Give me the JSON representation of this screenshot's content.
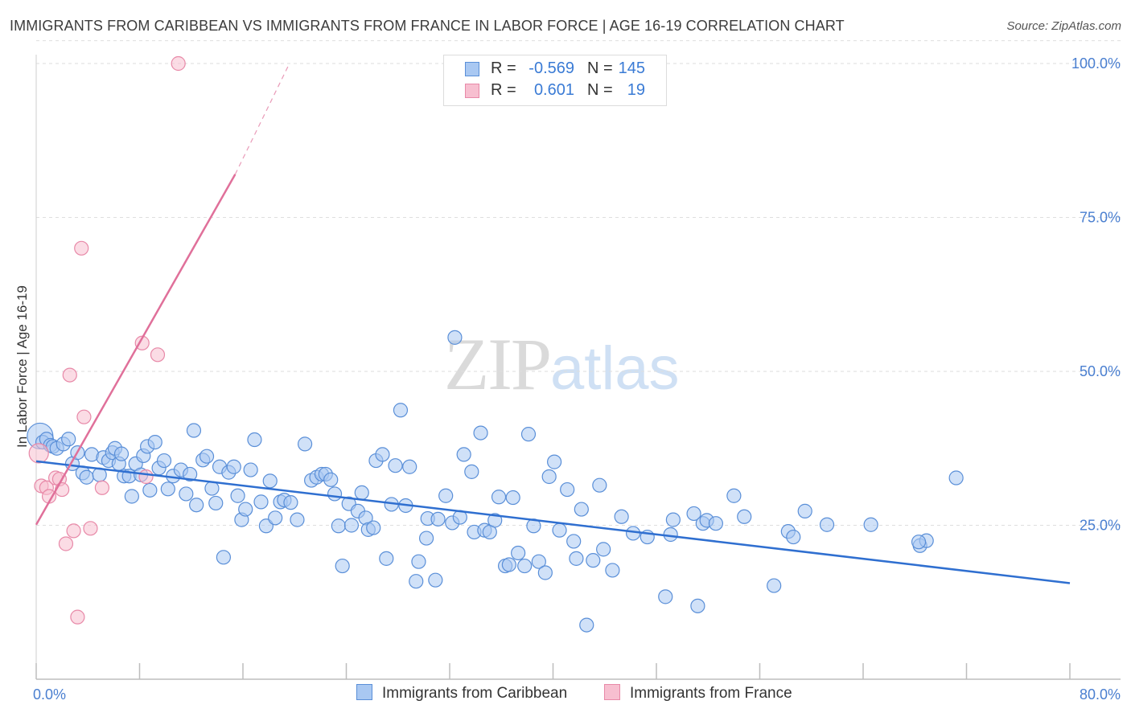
{
  "title": "IMMIGRANTS FROM CARIBBEAN VS IMMIGRANTS FROM FRANCE IN LABOR FORCE | AGE 16-19 CORRELATION CHART",
  "source": "Source: ZipAtlas.com",
  "watermark": {
    "zip": "ZIP",
    "atlas": "atlas"
  },
  "legend": {
    "series1": {
      "r_label": "R =",
      "r_value": "-0.569",
      "n_label": "N =",
      "n_value": "145"
    },
    "series2": {
      "r_label": "R =",
      "r_value": "0.601",
      "n_label": "N =",
      "n_value": "19"
    }
  },
  "colors": {
    "blue_fill": "#a9c8f2",
    "blue_stroke": "#5a8fd8",
    "blue_line": "#2f6fd0",
    "pink_fill": "#f7bfd0",
    "pink_stroke": "#e889a8",
    "pink_line": "#e0709a",
    "axis_text": "#4a7fd0",
    "grid": "#dedede"
  },
  "chart_data": {
    "type": "scatter",
    "title": "IMMIGRANTS FROM CARIBBEAN VS IMMIGRANTS FROM FRANCE IN LABOR FORCE | AGE 16-19 CORRELATION CHART",
    "xlabel": "",
    "ylabel": "In Labor Force | Age 16-19",
    "xlim": [
      0,
      80
    ],
    "ylim": [
      0,
      105
    ],
    "x_tick_labels": [
      "0.0%",
      "80.0%"
    ],
    "y_ticks": [
      25,
      50,
      75,
      100
    ],
    "y_tick_labels": [
      "25.0%",
      "50.0%",
      "75.0%",
      "100.0%"
    ],
    "grid": true,
    "legend_position": "bottom",
    "series": [
      {
        "name": "Immigrants from Caribbean",
        "color": "#a9c8f2",
        "trend": {
          "x": [
            0,
            80
          ],
          "y": [
            35.4,
            15.6
          ],
          "style": "solid"
        },
        "points": [
          [
            0.3,
            39.5
          ],
          [
            0.5,
            38.5
          ],
          [
            0.8,
            39
          ],
          [
            1.1,
            38
          ],
          [
            1.3,
            37.8
          ],
          [
            1.6,
            37.5
          ],
          [
            2.1,
            38.2
          ],
          [
            2.5,
            39
          ],
          [
            2.8,
            35
          ],
          [
            3.2,
            36.8
          ],
          [
            3.6,
            33.5
          ],
          [
            3.9,
            32.8
          ],
          [
            4.3,
            36.5
          ],
          [
            4.9,
            33.2
          ],
          [
            5.2,
            36
          ],
          [
            5.6,
            35.5
          ],
          [
            5.9,
            36.8
          ],
          [
            6.1,
            37.5
          ],
          [
            6.4,
            35
          ],
          [
            6.6,
            36.6
          ],
          [
            6.8,
            33
          ],
          [
            7.2,
            33
          ],
          [
            7.4,
            29.7
          ],
          [
            7.7,
            35
          ],
          [
            8.1,
            33.2
          ],
          [
            8.3,
            36.3
          ],
          [
            8.6,
            37.8
          ],
          [
            8.8,
            30.7
          ],
          [
            9.2,
            38.5
          ],
          [
            9.5,
            34.3
          ],
          [
            9.9,
            35.5
          ],
          [
            10.2,
            30.9
          ],
          [
            10.6,
            33
          ],
          [
            11.2,
            34
          ],
          [
            11.6,
            30.1
          ],
          [
            11.9,
            33.3
          ],
          [
            12.2,
            40.4
          ],
          [
            12.4,
            28.3
          ],
          [
            12.9,
            35.6
          ],
          [
            13.2,
            36.2
          ],
          [
            13.6,
            31
          ],
          [
            13.9,
            28.6
          ],
          [
            14.2,
            34.5
          ],
          [
            14.5,
            19.8
          ],
          [
            14.9,
            33.6
          ],
          [
            15.3,
            34.5
          ],
          [
            15.6,
            29.8
          ],
          [
            15.9,
            25.9
          ],
          [
            16.2,
            27.6
          ],
          [
            16.6,
            34
          ],
          [
            16.9,
            38.9
          ],
          [
            17.4,
            28.8
          ],
          [
            17.8,
            24.9
          ],
          [
            18.1,
            32.2
          ],
          [
            18.5,
            26.2
          ],
          [
            18.9,
            28.8
          ],
          [
            19.2,
            29.1
          ],
          [
            19.7,
            28.7
          ],
          [
            20.2,
            25.9
          ],
          [
            20.8,
            38.2
          ],
          [
            21.3,
            32.3
          ],
          [
            21.7,
            32.8
          ],
          [
            22.1,
            33.3
          ],
          [
            22.4,
            33.3
          ],
          [
            22.8,
            32.4
          ],
          [
            23.1,
            30.1
          ],
          [
            23.4,
            24.9
          ],
          [
            23.7,
            18.4
          ],
          [
            24.2,
            28.5
          ],
          [
            24.4,
            25
          ],
          [
            24.9,
            27.3
          ],
          [
            25.2,
            30.3
          ],
          [
            25.5,
            26.2
          ],
          [
            25.7,
            24.3
          ],
          [
            26.1,
            24.6
          ],
          [
            26.3,
            35.5
          ],
          [
            27.1,
            19.6
          ],
          [
            27.5,
            28.4
          ],
          [
            27.8,
            34.7
          ],
          [
            28.2,
            43.7
          ],
          [
            28.6,
            28.2
          ],
          [
            28.9,
            34.5
          ],
          [
            29.4,
            15.9
          ],
          [
            29.6,
            19.1
          ],
          [
            30.2,
            22.9
          ],
          [
            30.3,
            26.1
          ],
          [
            30.9,
            16.1
          ],
          [
            31.1,
            26
          ],
          [
            31.7,
            29.8
          ],
          [
            32.2,
            25.4
          ],
          [
            32.4,
            55.5
          ],
          [
            32.8,
            26.3
          ],
          [
            33.1,
            36.5
          ],
          [
            33.7,
            33.7
          ],
          [
            33.9,
            23.9
          ],
          [
            34.4,
            40
          ],
          [
            34.7,
            24.2
          ],
          [
            35.1,
            23.9
          ],
          [
            35.5,
            25.8
          ],
          [
            35.8,
            29.6
          ],
          [
            36.3,
            18.4
          ],
          [
            36.6,
            18.6
          ],
          [
            36.9,
            29.5
          ],
          [
            37.3,
            20.5
          ],
          [
            37.8,
            18.4
          ],
          [
            38.1,
            39.8
          ],
          [
            38.5,
            24.9
          ],
          [
            38.9,
            19.1
          ],
          [
            39.4,
            17.3
          ],
          [
            39.7,
            32.9
          ],
          [
            40.1,
            35.3
          ],
          [
            40.5,
            24.2
          ],
          [
            41.1,
            30.8
          ],
          [
            41.6,
            22.4
          ],
          [
            41.8,
            19.6
          ],
          [
            42.2,
            27.6
          ],
          [
            42.6,
            8.8
          ],
          [
            43.1,
            19.3
          ],
          [
            43.6,
            31.5
          ],
          [
            43.9,
            21.1
          ],
          [
            44.6,
            17.7
          ],
          [
            45.3,
            26.4
          ],
          [
            46.2,
            23.7
          ],
          [
            47.3,
            23.1
          ],
          [
            48.7,
            13.4
          ],
          [
            49.1,
            23.5
          ],
          [
            49.3,
            25.9
          ],
          [
            50.9,
            26.9
          ],
          [
            51.2,
            11.9
          ],
          [
            51.6,
            25.3
          ],
          [
            51.9,
            25.8
          ],
          [
            52.6,
            25.3
          ],
          [
            54.0,
            29.8
          ],
          [
            54.8,
            26.4
          ],
          [
            57.1,
            15.2
          ],
          [
            58.2,
            24
          ],
          [
            58.6,
            23.1
          ],
          [
            59.5,
            27.3
          ],
          [
            61.2,
            25.1
          ],
          [
            64.6,
            25.1
          ],
          [
            68.4,
            21.7
          ],
          [
            68.9,
            22.5
          ],
          [
            68.3,
            22.3
          ],
          [
            71.2,
            32.7
          ],
          [
            26.8,
            36.5
          ]
        ]
      },
      {
        "name": "Immigrants from France",
        "color": "#f7bfd0",
        "trend": {
          "x": [
            0,
            15.4
          ],
          "y": [
            25.1,
            82
          ],
          "x_dashed_to": 19.6,
          "y_dashed_to": 100,
          "style": "solid"
        },
        "points": [
          [
            0.2,
            36.7
          ],
          [
            0.4,
            31.4
          ],
          [
            0.8,
            31.1
          ],
          [
            1.0,
            29.7
          ],
          [
            1.5,
            32.7
          ],
          [
            1.8,
            32.5
          ],
          [
            2.0,
            30.8
          ],
          [
            2.3,
            22
          ],
          [
            2.6,
            49.4
          ],
          [
            2.9,
            24.1
          ],
          [
            3.2,
            10.1
          ],
          [
            3.5,
            70
          ],
          [
            3.7,
            42.6
          ],
          [
            4.2,
            24.5
          ],
          [
            5.1,
            31.1
          ],
          [
            8.2,
            54.6
          ],
          [
            8.5,
            32.9
          ],
          [
            9.4,
            52.7
          ],
          [
            11.0,
            100
          ]
        ]
      }
    ]
  }
}
